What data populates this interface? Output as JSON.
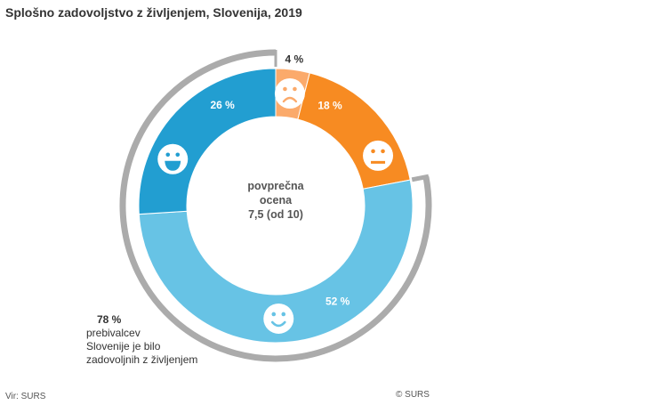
{
  "chart_data": {
    "type": "pie",
    "variant": "donut",
    "title": "Splošno zadovoljstvo z življenjem, Slovenija, 2019",
    "center_label": [
      "povprečna",
      "ocena",
      "7,5 (od 10)"
    ],
    "slices": [
      {
        "name": "nezadovoljni",
        "value": 4,
        "label": "4 %",
        "color": "#FBAA6B",
        "icon": "sad-face-icon"
      },
      {
        "name": "niti zadovoljni niti nezadovoljni",
        "value": 18,
        "label": "18 %",
        "color": "#F78B22",
        "icon": "neutral-face-icon"
      },
      {
        "name": "zadovoljni",
        "value": 52,
        "label": "52 %",
        "color": "#67C3E5",
        "icon": "smile-face-icon"
      },
      {
        "name": "zelo zadovoljni",
        "value": 26,
        "label": "26 %",
        "color": "#229ED1",
        "icon": "laugh-face-icon"
      }
    ],
    "highlight_bracket": {
      "covers": [
        "zadovoljni",
        "zelo zadovoljni"
      ],
      "value": 78,
      "color": "#ABABAB"
    },
    "annotation": {
      "value": "78 %",
      "lines": [
        "prebivalcev",
        "Slovenije je bilo",
        "zadovoljnih z življenjem"
      ]
    }
  },
  "footer": {
    "source": "Vir: SURS",
    "copyright": "© SURS"
  }
}
